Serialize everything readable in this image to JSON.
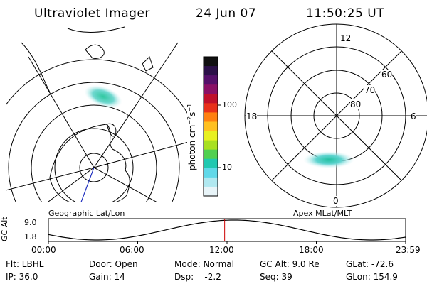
{
  "header": {
    "instrument": "Ultraviolet Imager",
    "date": "24 Jun 07",
    "time": "11:50:25 UT"
  },
  "panels": {
    "left_label": "Geographic Lat/Lon",
    "right_label": "Apex MLat/MLT"
  },
  "polar_plot": {
    "mlt_labels": {
      "top": "12",
      "left": "18",
      "right": "6",
      "bottom": "0"
    },
    "lat_labels": [
      "60",
      "70",
      "80"
    ]
  },
  "colorbar": {
    "unit_label": "photon cm",
    "unit_exp1": "−2",
    "unit_mid": "s",
    "unit_exp2": "−1",
    "ticks": [
      "100",
      "10"
    ],
    "colors": [
      "#101010",
      "#2b1048",
      "#55106a",
      "#8a1066",
      "#c0102b",
      "#e8301a",
      "#ff8010",
      "#ffc020",
      "#e8f020",
      "#a8e020",
      "#50d050",
      "#20c8b0",
      "#60d8e8",
      "#b0e8f0",
      "#e8f4f8"
    ]
  },
  "altitude_plot": {
    "ylabel": "GC Alt",
    "y_ticks": [
      "9.0",
      "1.8"
    ],
    "x_ticks": [
      "00:00",
      "06:00",
      "12:00",
      "18:00",
      "23:59"
    ],
    "current_marker_hour": 11.84
  },
  "status": {
    "row1": [
      {
        "label": "Flt: LBHL"
      },
      {
        "label": "Door: Open"
      },
      {
        "label": "Mode: Normal"
      },
      {
        "label": "GC Alt: 9.0 Re"
      },
      {
        "label": "GLat: -72.6"
      }
    ],
    "row2": [
      {
        "label": "IP: 36.0"
      },
      {
        "label": "Gain: 14"
      },
      {
        "label": "Dsp:    -2.2"
      },
      {
        "label": "Seq: 39"
      },
      {
        "label": "GLon: 154.9"
      }
    ]
  },
  "colors": {
    "line": "#000000",
    "marker": "#cc0000",
    "aurora_core": "#30c8a0",
    "aurora_edge": "#a0e8f0"
  }
}
